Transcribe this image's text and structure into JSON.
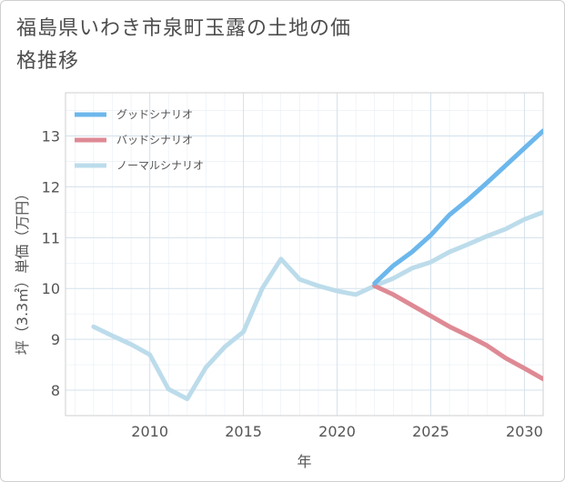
{
  "title": "福島県いわき市泉町玉露の土地の価格推移",
  "colors": {
    "good": "#6cb7ec",
    "bad": "#de8a94",
    "normal": "#bcdceb",
    "grid": "#d4e1ec",
    "axis": "#444444",
    "plot_border": "#cfcfcf"
  },
  "chart_data": {
    "type": "line",
    "xlabel": "年",
    "ylabel": "坪（3.3㎡）単価（万円）",
    "xlim": [
      2005.5,
      2031
    ],
    "ylim": [
      7.5,
      13.85
    ],
    "xticks": [
      2010,
      2015,
      2020,
      2025,
      2030
    ],
    "yticks": [
      8,
      9,
      10,
      11,
      12,
      13
    ],
    "grid": true,
    "legend_position": "top-left",
    "series": [
      {
        "name": "グッドシナリオ",
        "color_key": "good",
        "x": [
          2022,
          2023,
          2024,
          2025,
          2026,
          2027,
          2028,
          2029,
          2030,
          2031
        ],
        "y": [
          10.1,
          10.45,
          10.72,
          11.05,
          11.45,
          11.75,
          12.08,
          12.42,
          12.76,
          13.1
        ]
      },
      {
        "name": "バッドシナリオ",
        "color_key": "bad",
        "x": [
          2022,
          2023,
          2024,
          2025,
          2026,
          2027,
          2028,
          2029,
          2030,
          2031
        ],
        "y": [
          10.05,
          9.88,
          9.67,
          9.46,
          9.25,
          9.07,
          8.88,
          8.63,
          8.43,
          8.22
        ]
      },
      {
        "name": "ノーマルシナリオ",
        "color_key": "normal",
        "x": [
          2007,
          2008,
          2009,
          2010,
          2011,
          2012,
          2013,
          2014,
          2015,
          2016,
          2017,
          2018,
          2019,
          2020,
          2021,
          2022,
          2023,
          2024,
          2025,
          2026,
          2027,
          2028,
          2029,
          2030,
          2031
        ],
        "y": [
          9.25,
          9.07,
          8.9,
          8.7,
          8.02,
          7.83,
          8.45,
          8.85,
          9.15,
          10.0,
          10.58,
          10.18,
          10.05,
          9.95,
          9.88,
          10.05,
          10.2,
          10.4,
          10.52,
          10.72,
          10.87,
          11.03,
          11.17,
          11.36,
          11.5
        ]
      }
    ]
  }
}
